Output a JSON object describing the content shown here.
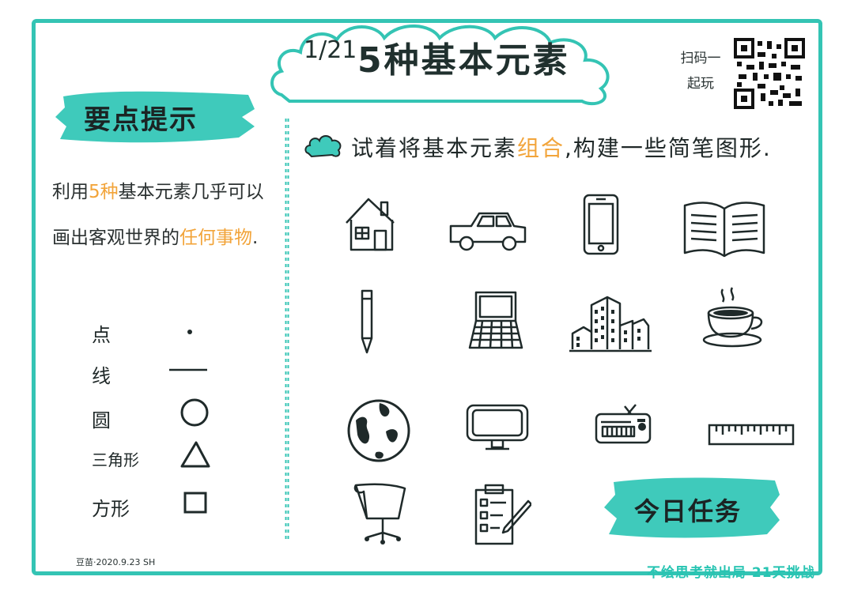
{
  "title": {
    "number": "1/21",
    "text": "5种基本元素"
  },
  "qr": {
    "label": "扫码一起玩"
  },
  "hint": {
    "heading": "要点提示",
    "desc_prefix": "利用",
    "desc_highlight1": "5种",
    "desc_mid": "基本元素几乎可以画出客观世界的",
    "desc_highlight2": "任何事物",
    "desc_suffix": "."
  },
  "elements": [
    {
      "label": "点",
      "shape": "dot"
    },
    {
      "label": "线",
      "shape": "line"
    },
    {
      "label": "圆",
      "shape": "circle"
    },
    {
      "label": "三角形",
      "shape": "triangle"
    },
    {
      "label": "方形",
      "shape": "square"
    }
  ],
  "main": {
    "instruction_a": "试着将基本元素",
    "instruction_highlight": "组合",
    "instruction_b": ",构建一些简笔图形."
  },
  "icons": [
    "house-icon",
    "car-icon",
    "phone-icon",
    "book-icon",
    "pen-icon",
    "laptop-icon",
    "buildings-icon",
    "coffee-cup-icon",
    "globe-icon",
    "monitor-icon",
    "radio-icon",
    "ruler-icon",
    "office-chair-icon",
    "checklist-icon"
  ],
  "task": {
    "heading": "今日任务"
  },
  "footer": {
    "credit": "豆苗·2020.9.23 SH",
    "slogan": "不绘思考就出局 21天挑战"
  },
  "colors": {
    "accent": "#34c4b4",
    "highlight": "#f2a43a",
    "ink": "#1f2a2a"
  }
}
